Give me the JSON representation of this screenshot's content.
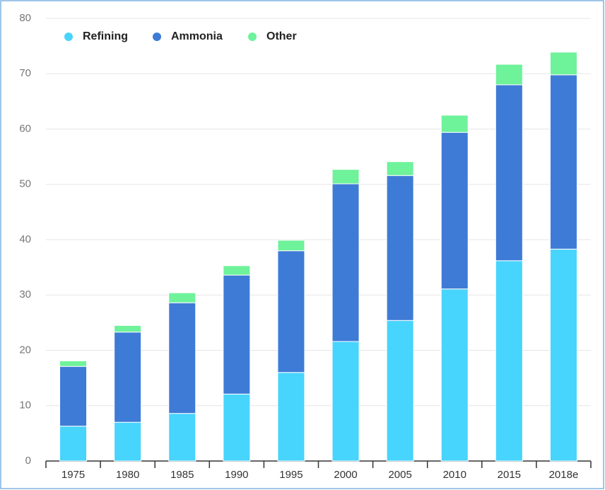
{
  "chart_data": {
    "type": "stacked_bar",
    "categories": [
      "1975",
      "1980",
      "1985",
      "1990",
      "1995",
      "2000",
      "2005",
      "2010",
      "2015",
      "2018e"
    ],
    "series": [
      {
        "name": "Refining",
        "color": "#47d4fd",
        "values": [
          6.3,
          7.0,
          8.6,
          12.1,
          16.0,
          21.6,
          25.4,
          31.1,
          36.2,
          38.3
        ]
      },
      {
        "name": "Ammonia",
        "color": "#3e7bd6",
        "values": [
          10.8,
          16.3,
          20.0,
          21.5,
          22.0,
          28.5,
          26.2,
          28.3,
          31.8,
          31.5
        ]
      },
      {
        "name": "Other",
        "color": "#6ef29a",
        "values": [
          1.0,
          1.2,
          1.8,
          1.7,
          1.9,
          2.6,
          2.5,
          3.1,
          3.7,
          4.1
        ]
      }
    ],
    "ylim": [
      0,
      80
    ],
    "yticks": [
      0,
      10,
      20,
      30,
      40,
      50,
      60,
      70,
      80
    ],
    "grid": true,
    "legend": "top-left"
  }
}
